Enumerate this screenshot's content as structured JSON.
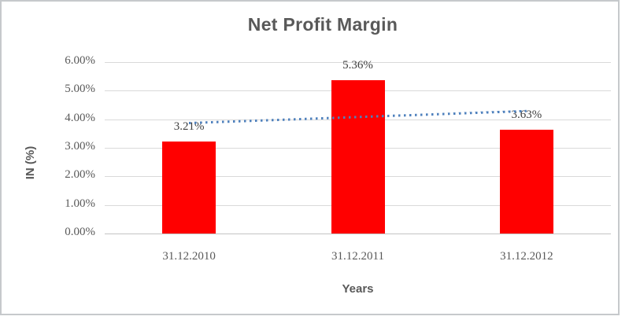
{
  "window": {
    "background": "#ffffff",
    "frame_border_color": "#c6c9cc"
  },
  "chart_data": {
    "type": "bar",
    "title": "Net Profit Margin",
    "xlabel": "Years",
    "ylabel": "IN (%)",
    "categories": [
      "31.12.2010",
      "31.12.2011",
      "31.12.2012"
    ],
    "series": [
      {
        "name": "Net Profit Margin",
        "values": [
          3.21,
          5.36,
          3.63
        ]
      }
    ],
    "data_labels": [
      "3.21%",
      "5.36%",
      "3.63%"
    ],
    "yticks": [
      "6.00%",
      "5.00%",
      "4.00%",
      "3.00%",
      "2.00%",
      "1.00%",
      "0.00%"
    ],
    "ylim": [
      0,
      6
    ],
    "grid": true,
    "legend": "none",
    "bar_color": "#ff0000",
    "gridline_color": "#d9d9d9",
    "axis_line_color": "#c3c3c3",
    "text_colors": {
      "title": "#595959",
      "ticks": "#595959",
      "data_labels": "#3f3f3f"
    },
    "trendline": {
      "type": "linear",
      "style": "dotted",
      "color": "#4f81bd",
      "start_value": 3.86,
      "end_value": 4.28
    }
  }
}
